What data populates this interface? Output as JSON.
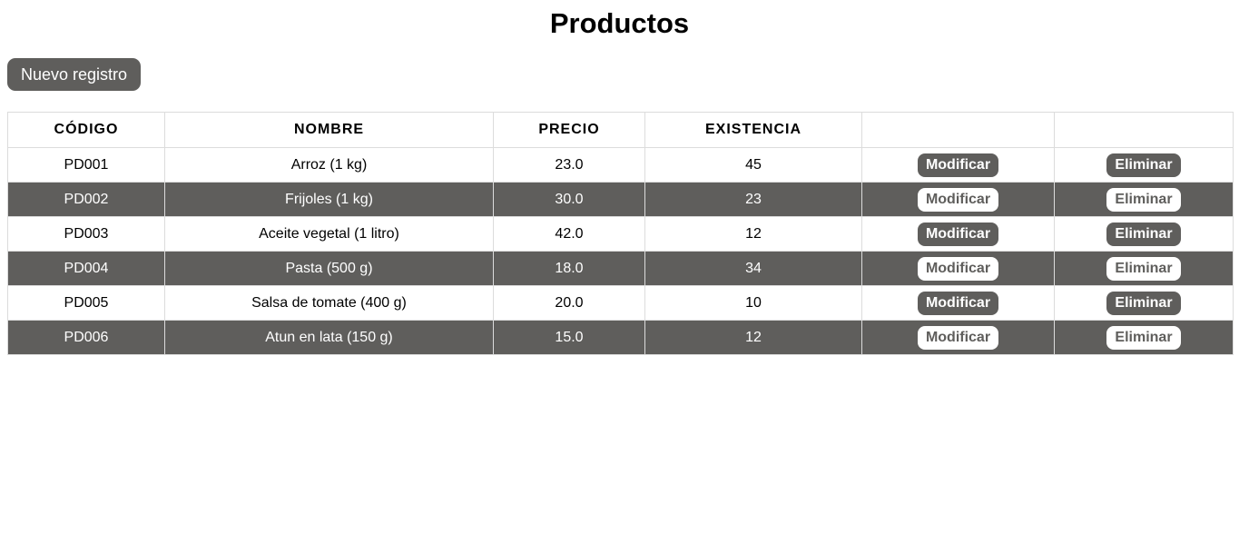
{
  "page": {
    "title": "Productos"
  },
  "toolbar": {
    "new_label": "Nuevo registro"
  },
  "table": {
    "headers": [
      "CÓDIGO",
      "NOMBRE",
      "PRECIO",
      "EXISTENCIA",
      "",
      ""
    ],
    "rows": [
      {
        "codigo": "PD001",
        "nombre": "Arroz (1 kg)",
        "precio": "23.0",
        "existencia": "45",
        "modify": "Modificar",
        "delete": "Eliminar"
      },
      {
        "codigo": "PD002",
        "nombre": "Frijoles (1 kg)",
        "precio": "30.0",
        "existencia": "23",
        "modify": "Modificar",
        "delete": "Eliminar"
      },
      {
        "codigo": "PD003",
        "nombre": "Aceite vegetal (1 litro)",
        "precio": "42.0",
        "existencia": "12",
        "modify": "Modificar",
        "delete": "Eliminar"
      },
      {
        "codigo": "PD004",
        "nombre": "Pasta (500 g)",
        "precio": "18.0",
        "existencia": "34",
        "modify": "Modificar",
        "delete": "Eliminar"
      },
      {
        "codigo": "PD005",
        "nombre": "Salsa de tomate (400 g)",
        "precio": "20.0",
        "existencia": "10",
        "modify": "Modificar",
        "delete": "Eliminar"
      },
      {
        "codigo": "PD006",
        "nombre": "Atun en lata (150 g)",
        "precio": "15.0",
        "existencia": "12",
        "modify": "Modificar",
        "delete": "Eliminar"
      }
    ]
  },
  "colors": {
    "accent": "#5f5e5c",
    "background": "#ffffff",
    "border": "#dcdcdc"
  }
}
